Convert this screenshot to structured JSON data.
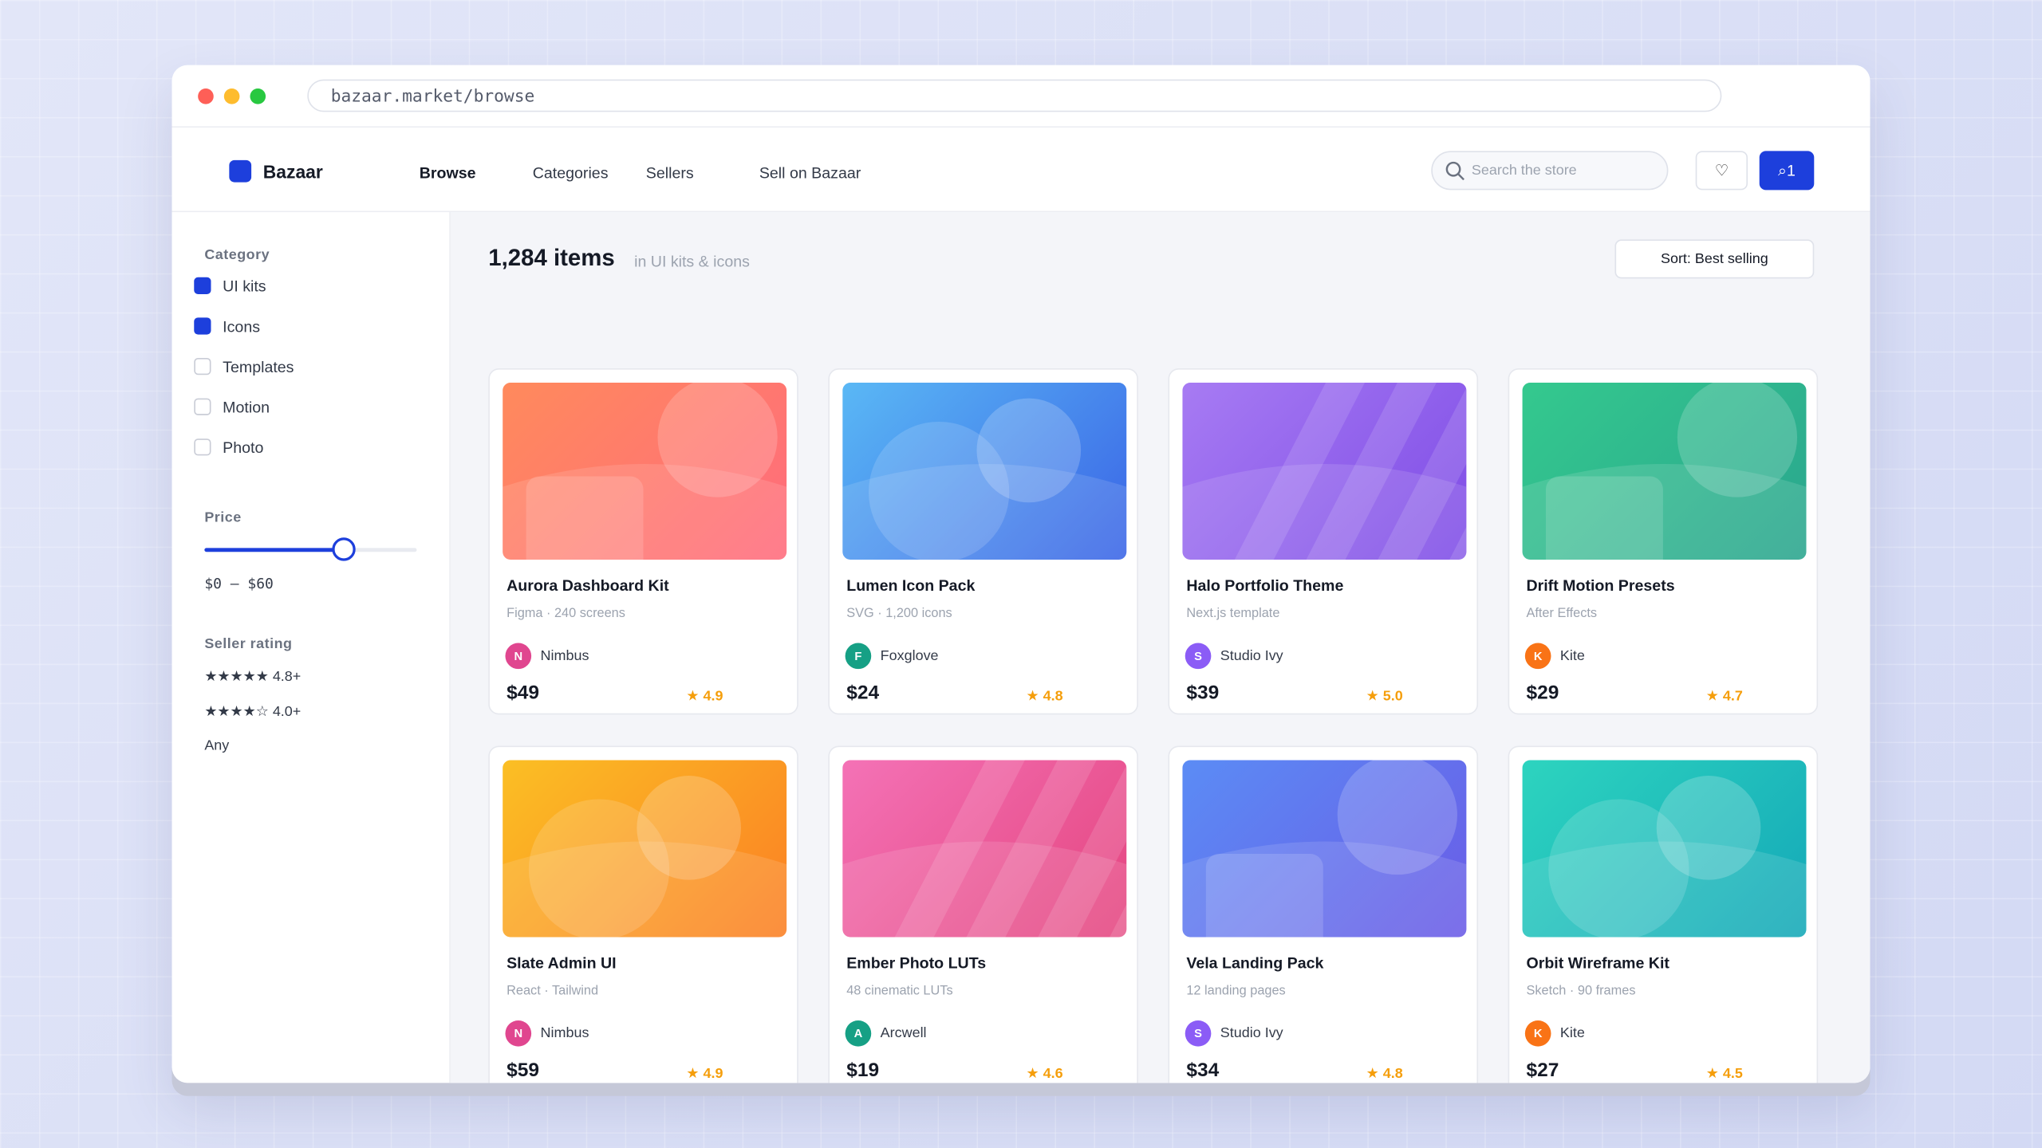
{
  "browser": {
    "url": "bazaar.market/browse"
  },
  "header": {
    "brand": "Bazaar",
    "nav": [
      {
        "label": "Browse",
        "active": true
      },
      {
        "label": "Categories"
      },
      {
        "label": "Sellers"
      },
      {
        "label": "Sell on Bazaar"
      }
    ],
    "search_placeholder": "Search the store",
    "cart_count": "1"
  },
  "sidebar": {
    "category_title": "Category",
    "categories": [
      {
        "label": "UI kits",
        "checked": true
      },
      {
        "label": "Icons",
        "checked": true
      },
      {
        "label": "Templates",
        "checked": false
      },
      {
        "label": "Motion",
        "checked": false
      },
      {
        "label": "Photo",
        "checked": false
      }
    ],
    "price_title": "Price",
    "price_range": "$0 – $60",
    "rating_title": "Seller rating",
    "ratings": [
      "★★★★★ 4.8+",
      "★★★★☆ 4.0+",
      "Any"
    ]
  },
  "results": {
    "count": "1,284 items",
    "context": "in UI kits & icons",
    "sort": "Sort: Best selling"
  },
  "products": [
    {
      "title": "Aurora Dashboard Kit",
      "meta": "Figma · 240 screens",
      "seller": "Nimbus",
      "initial": "N",
      "avatar": "#e0468f",
      "price": "$49",
      "rating": "4.9",
      "colors": [
        "#ff8a5c",
        "#ff6b7d"
      ]
    },
    {
      "title": "Lumen Icon Pack",
      "meta": "SVG · 1,200 icons",
      "seller": "Foxglove",
      "initial": "F",
      "avatar": "#16a085",
      "price": "$24",
      "rating": "4.8",
      "colors": [
        "#5ab8f5",
        "#3a64e6"
      ]
    },
    {
      "title": "Halo Portfolio Theme",
      "meta": "Next.js template",
      "seller": "Studio Ivy",
      "initial": "S",
      "avatar": "#8b5cf6",
      "price": "$39",
      "rating": "5.0",
      "colors": [
        "#a77bf3",
        "#7e4ce6"
      ]
    },
    {
      "title": "Drift Motion Presets",
      "meta": "After Effects",
      "seller": "Kite",
      "initial": "K",
      "avatar": "#f97316",
      "price": "$29",
      "rating": "4.7",
      "colors": [
        "#34c98e",
        "#2aa58e"
      ]
    },
    {
      "title": "Slate Admin UI",
      "meta": "React · Tailwind",
      "seller": "Nimbus",
      "initial": "N",
      "avatar": "#e0468f",
      "price": "$59",
      "rating": "4.9",
      "colors": [
        "#fbbf24",
        "#fb7f24"
      ]
    },
    {
      "title": "Ember Photo LUTs",
      "meta": "48 cinematic LUTs",
      "seller": "Arcwell",
      "initial": "A",
      "avatar": "#16a085",
      "price": "$19",
      "rating": "4.6",
      "colors": [
        "#f472b6",
        "#e4457f"
      ]
    },
    {
      "title": "Vela Landing Pack",
      "meta": "12 landing pages",
      "seller": "Studio Ivy",
      "initial": "S",
      "avatar": "#8b5cf6",
      "price": "$34",
      "rating": "4.8",
      "colors": [
        "#5b8cf5",
        "#6a5be6"
      ]
    },
    {
      "title": "Orbit Wireframe Kit",
      "meta": "Sketch · 90 frames",
      "seller": "Kite",
      "initial": "K",
      "avatar": "#f97316",
      "price": "$27",
      "rating": "4.5",
      "colors": [
        "#2dd4bf",
        "#14a8b8"
      ]
    }
  ]
}
